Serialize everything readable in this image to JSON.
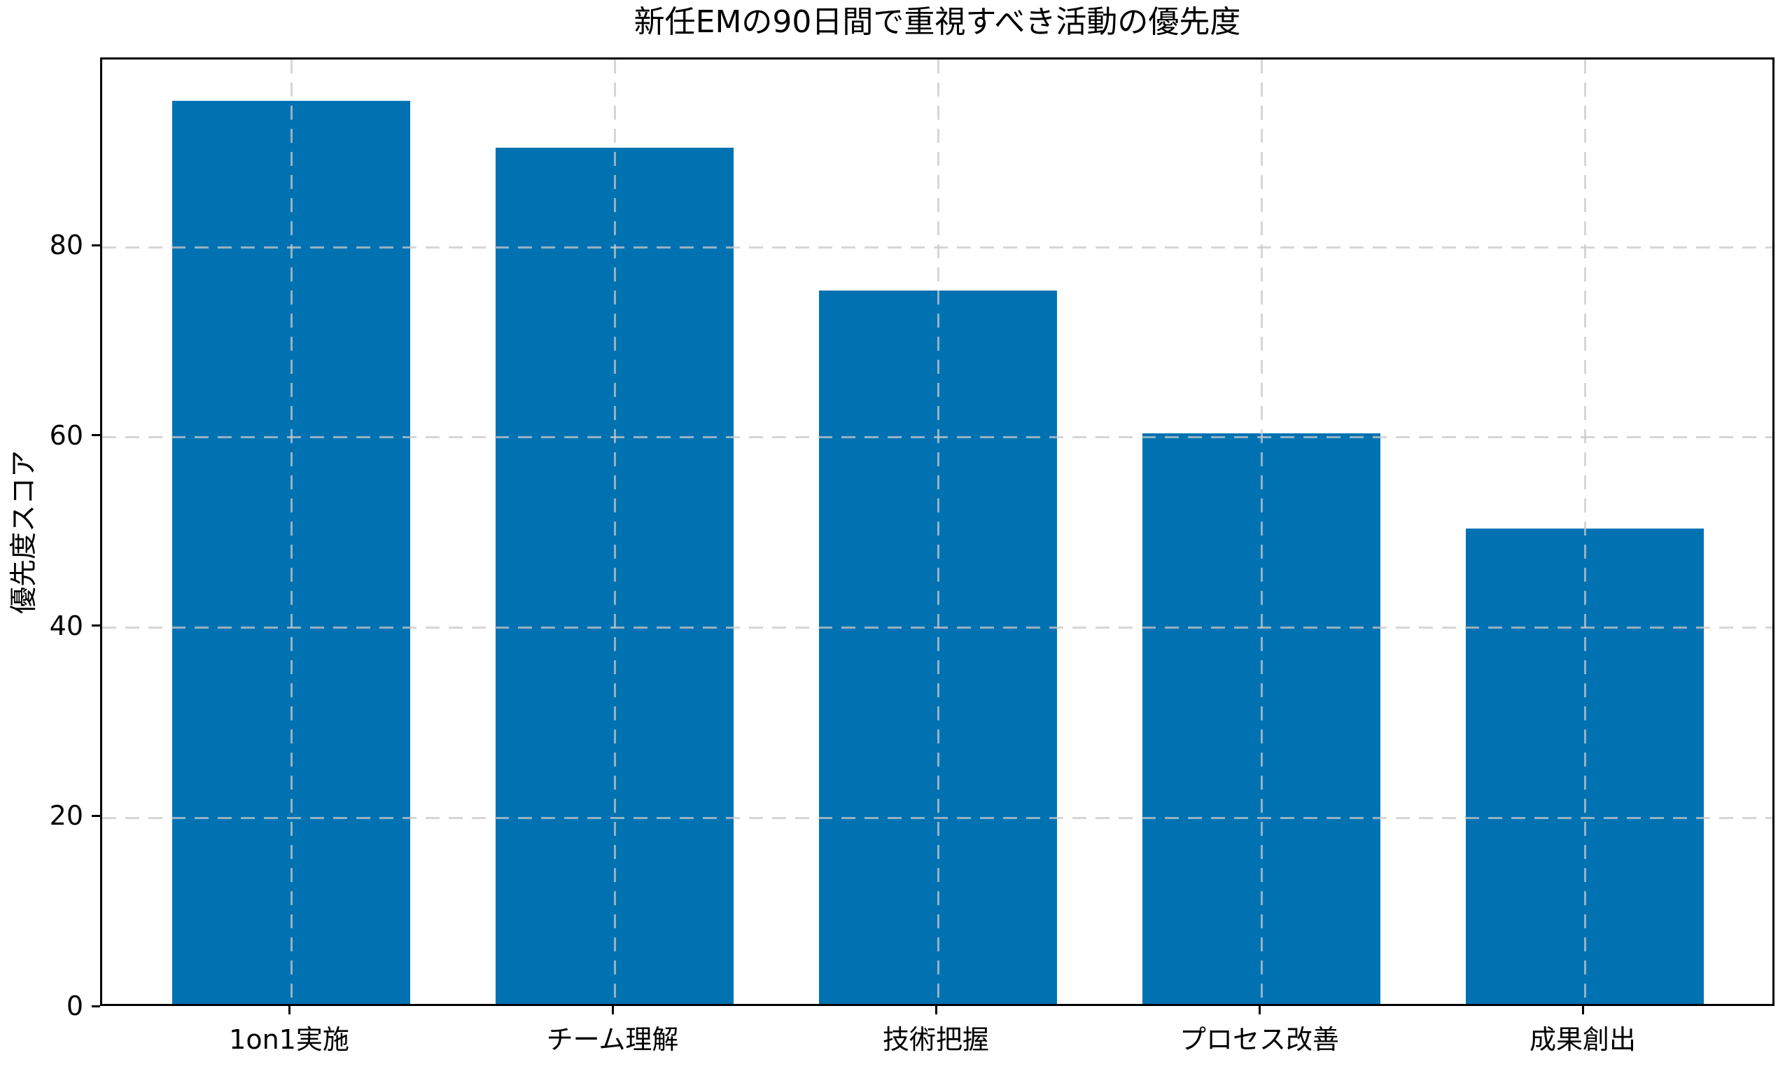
{
  "chart_data": {
    "type": "bar",
    "title": "新任EMの90日間で重視すべき活動の優先度",
    "ylabel": "優先度スコア",
    "xlabel": "",
    "categories": [
      "1on1実施",
      "チーム理解",
      "技術把握",
      "プロセス改善",
      "成果創出"
    ],
    "values": [
      95,
      90,
      75,
      60,
      50
    ],
    "yticks": [
      0,
      20,
      40,
      60,
      80
    ],
    "ylim": [
      0,
      99.75
    ],
    "bar_color": "#0072b2",
    "grid": {
      "style": "dashed",
      "axes": "both",
      "color": "#c8c8c8",
      "drawn_above_bars": true
    },
    "legend": "none",
    "background_color": "#ffffff",
    "spine_color": "#000000"
  }
}
